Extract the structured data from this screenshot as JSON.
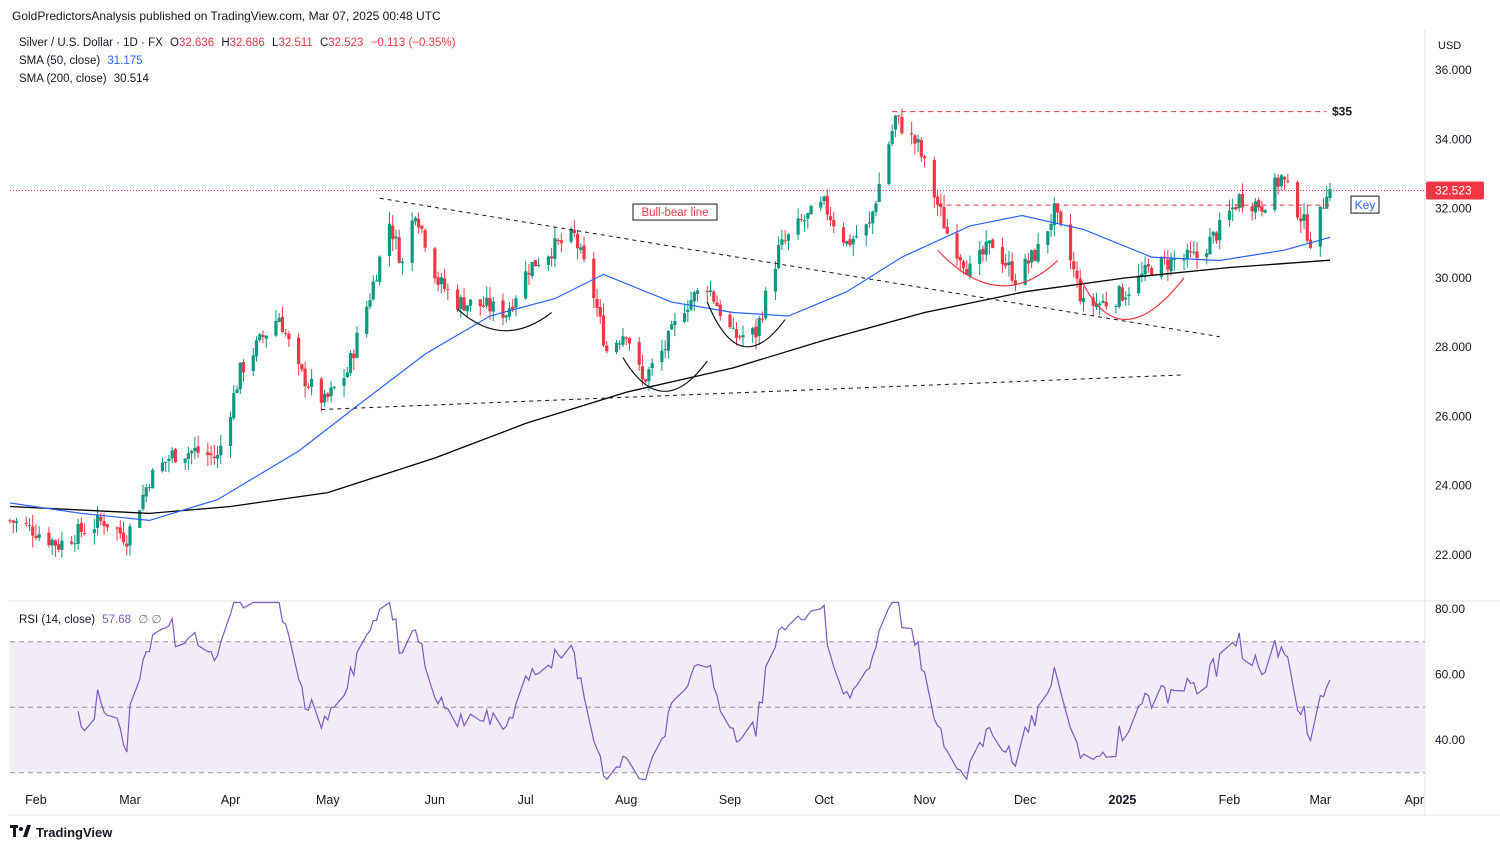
{
  "header": {
    "published": "GoldPredictorsAnalysis published on TradingView.com, Mar 07, 2025 00:48 UTC"
  },
  "legend": {
    "symbol": "Silver / U.S. Dollar · 1D · FX",
    "open_label": "O",
    "open": "32.636",
    "high_label": "H",
    "high": "32.686",
    "low_label": "L",
    "low": "32.511",
    "close_label": "C",
    "close": "32.523",
    "change": "−0.113 (−0.35%)",
    "sma50_label": "SMA (50, close)",
    "sma50_value": "31.175",
    "sma200_label": "SMA (200, close)",
    "sma200_value": "30.514",
    "rsi_label": "RSI (14, close)",
    "rsi_value": "57.68",
    "rsi_extra": "∅ ∅"
  },
  "price_axis": {
    "currency": "USD",
    "ticks": [
      "36.000",
      "34.000",
      "32.000",
      "30.000",
      "28.000",
      "26.000",
      "24.000",
      "22.000"
    ],
    "current_price": "32.523"
  },
  "rsi_axis": {
    "ticks": [
      "80.00",
      "60.00",
      "40.00"
    ]
  },
  "time_axis": {
    "ticks": [
      "Feb",
      "Mar",
      "Apr",
      "May",
      "Jun",
      "Jul",
      "Aug",
      "Sep",
      "Oct",
      "Nov",
      "Dec",
      "2025",
      "Feb",
      "Mar",
      "Apr"
    ]
  },
  "annotations": {
    "resistance_label": "$35",
    "key_label": "Key",
    "bull_bear_label": "Bull-bear line"
  },
  "footer": {
    "brand": "TradingView",
    "logo": "TV-logo-icon"
  },
  "colors": {
    "up": "#089981",
    "down": "#f23645",
    "sma50": "#2962ff",
    "sma200": "#000000",
    "rsi": "#7e57c2",
    "rsi_band": "#ede7f6",
    "annotation_red": "#f23645"
  },
  "chart_data": [
    {
      "type": "candlestick",
      "title": "Silver / U.S. Dollar · 1D · FX",
      "ylim": [
        21.0,
        37.2
      ],
      "y_ticks": [
        22,
        24,
        26,
        28,
        30,
        32,
        34,
        36
      ],
      "x_ticks": [
        "Feb",
        "Mar",
        "Apr",
        "May",
        "Jun",
        "Jul",
        "Aug",
        "Sep",
        "Oct",
        "Nov",
        "Dec",
        "2025",
        "Feb",
        "Mar",
        "Apr"
      ],
      "close_path": [
        {
          "date": "2024-01-24",
          "v": 23.0
        },
        {
          "date": "2024-02-01",
          "v": 22.7
        },
        {
          "date": "2024-02-08",
          "v": 22.3
        },
        {
          "date": "2024-02-15",
          "v": 22.7
        },
        {
          "date": "2024-02-22",
          "v": 23.0
        },
        {
          "date": "2024-02-29",
          "v": 22.5
        },
        {
          "date": "2024-03-07",
          "v": 24.2
        },
        {
          "date": "2024-03-14",
          "v": 24.9
        },
        {
          "date": "2024-03-21",
          "v": 25.0
        },
        {
          "date": "2024-03-28",
          "v": 24.8
        },
        {
          "date": "2024-04-04",
          "v": 27.3
        },
        {
          "date": "2024-04-11",
          "v": 28.3
        },
        {
          "date": "2024-04-16",
          "v": 28.9
        },
        {
          "date": "2024-04-22",
          "v": 27.3
        },
        {
          "date": "2024-04-30",
          "v": 26.4
        },
        {
          "date": "2024-05-07",
          "v": 27.3
        },
        {
          "date": "2024-05-14",
          "v": 29.5
        },
        {
          "date": "2024-05-20",
          "v": 31.6
        },
        {
          "date": "2024-05-24",
          "v": 30.4
        },
        {
          "date": "2024-05-28",
          "v": 32.0
        },
        {
          "date": "2024-06-04",
          "v": 29.9
        },
        {
          "date": "2024-06-10",
          "v": 29.3
        },
        {
          "date": "2024-06-18",
          "v": 29.2
        },
        {
          "date": "2024-06-25",
          "v": 29.0
        },
        {
          "date": "2024-07-02",
          "v": 30.3
        },
        {
          "date": "2024-07-10",
          "v": 30.9
        },
        {
          "date": "2024-07-16",
          "v": 31.2
        },
        {
          "date": "2024-07-22",
          "v": 29.5
        },
        {
          "date": "2024-07-26",
          "v": 27.9
        },
        {
          "date": "2024-08-01",
          "v": 28.5
        },
        {
          "date": "2024-08-06",
          "v": 27.0
        },
        {
          "date": "2024-08-13",
          "v": 28.0
        },
        {
          "date": "2024-08-19",
          "v": 29.2
        },
        {
          "date": "2024-08-26",
          "v": 29.8
        },
        {
          "date": "2024-09-03",
          "v": 28.3
        },
        {
          "date": "2024-09-10",
          "v": 28.4
        },
        {
          "date": "2024-09-17",
          "v": 30.8
        },
        {
          "date": "2024-09-24",
          "v": 31.6
        },
        {
          "date": "2024-10-01",
          "v": 32.1
        },
        {
          "date": "2024-10-08",
          "v": 31.0
        },
        {
          "date": "2024-10-15",
          "v": 31.5
        },
        {
          "date": "2024-10-21",
          "v": 33.9
        },
        {
          "date": "2024-10-23",
          "v": 34.6
        },
        {
          "date": "2024-10-30",
          "v": 33.8
        },
        {
          "date": "2024-11-04",
          "v": 32.4
        },
        {
          "date": "2024-11-08",
          "v": 31.3
        },
        {
          "date": "2024-11-15",
          "v": 30.2
        },
        {
          "date": "2024-11-22",
          "v": 31.0
        },
        {
          "date": "2024-11-29",
          "v": 30.0
        },
        {
          "date": "2024-12-06",
          "v": 30.8
        },
        {
          "date": "2024-12-11",
          "v": 31.9
        },
        {
          "date": "2024-12-16",
          "v": 30.5
        },
        {
          "date": "2024-12-20",
          "v": 29.2
        },
        {
          "date": "2024-12-27",
          "v": 29.3
        },
        {
          "date": "2025-01-02",
          "v": 29.6
        },
        {
          "date": "2025-01-10",
          "v": 30.3
        },
        {
          "date": "2025-01-17",
          "v": 30.5
        },
        {
          "date": "2025-01-24",
          "v": 30.6
        },
        {
          "date": "2025-01-31",
          "v": 31.4
        },
        {
          "date": "2025-02-06",
          "v": 32.3
        },
        {
          "date": "2025-02-13",
          "v": 32.1
        },
        {
          "date": "2025-02-19",
          "v": 32.9
        },
        {
          "date": "2025-02-25",
          "v": 31.8
        },
        {
          "date": "2025-02-28",
          "v": 31.1
        },
        {
          "date": "2025-03-03",
          "v": 31.8
        },
        {
          "date": "2025-03-05",
          "v": 32.6
        },
        {
          "date": "2025-03-06",
          "v": 32.52
        }
      ],
      "sma50": [
        {
          "date": "2024-01-24",
          "v": 23.5
        },
        {
          "date": "2024-02-15",
          "v": 23.2
        },
        {
          "date": "2024-03-07",
          "v": 23.0
        },
        {
          "date": "2024-03-28",
          "v": 23.6
        },
        {
          "date": "2024-04-22",
          "v": 25.0
        },
        {
          "date": "2024-05-10",
          "v": 26.3
        },
        {
          "date": "2024-05-31",
          "v": 27.8
        },
        {
          "date": "2024-06-20",
          "v": 28.9
        },
        {
          "date": "2024-07-10",
          "v": 29.4
        },
        {
          "date": "2024-07-25",
          "v": 30.1
        },
        {
          "date": "2024-08-15",
          "v": 29.3
        },
        {
          "date": "2024-09-03",
          "v": 29.0
        },
        {
          "date": "2024-09-20",
          "v": 28.9
        },
        {
          "date": "2024-10-08",
          "v": 29.6
        },
        {
          "date": "2024-10-25",
          "v": 30.6
        },
        {
          "date": "2024-11-15",
          "v": 31.5
        },
        {
          "date": "2024-12-01",
          "v": 31.8
        },
        {
          "date": "2024-12-20",
          "v": 31.4
        },
        {
          "date": "2025-01-10",
          "v": 30.6
        },
        {
          "date": "2025-01-31",
          "v": 30.5
        },
        {
          "date": "2025-02-20",
          "v": 30.8
        },
        {
          "date": "2025-03-06",
          "v": 31.17
        }
      ],
      "sma200": [
        {
          "date": "2024-01-24",
          "v": 23.4
        },
        {
          "date": "2024-03-07",
          "v": 23.2
        },
        {
          "date": "2024-04-01",
          "v": 23.4
        },
        {
          "date": "2024-05-01",
          "v": 23.8
        },
        {
          "date": "2024-06-03",
          "v": 24.8
        },
        {
          "date": "2024-07-01",
          "v": 25.8
        },
        {
          "date": "2024-08-01",
          "v": 26.7
        },
        {
          "date": "2024-09-03",
          "v": 27.4
        },
        {
          "date": "2024-10-01",
          "v": 28.2
        },
        {
          "date": "2024-11-01",
          "v": 29.0
        },
        {
          "date": "2024-12-02",
          "v": 29.6
        },
        {
          "date": "2025-01-02",
          "v": 30.0
        },
        {
          "date": "2025-02-03",
          "v": 30.3
        },
        {
          "date": "2025-03-06",
          "v": 30.51
        }
      ],
      "levels": [
        {
          "label": "$35",
          "value": 34.8
        },
        {
          "label": "Key",
          "value": 32.1
        }
      ]
    },
    {
      "type": "line",
      "title": "RSI (14, close)",
      "ylim": [
        26,
        82
      ],
      "y_ticks": [
        40,
        60,
        80
      ],
      "bands": {
        "upper": 70,
        "middle": 50,
        "lower": 30
      },
      "last_value": 57.68
    }
  ]
}
